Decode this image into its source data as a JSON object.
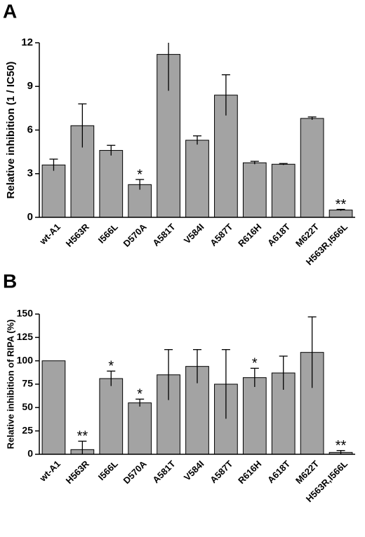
{
  "chart_data": [
    {
      "type": "bar",
      "panel": "A",
      "ylabel": "Relative inhibition (1 / IC50)",
      "categories": [
        "wt-A1",
        "H563R",
        "I566L",
        "D570A",
        "A581T",
        "V584I",
        "A587T",
        "R616H",
        "A618T",
        "M622T",
        "H563R,I566L"
      ],
      "values": [
        3.6,
        6.3,
        4.6,
        2.25,
        11.2,
        5.3,
        8.4,
        3.75,
        3.65,
        6.8,
        0.5
      ],
      "errors": [
        0.4,
        1.5,
        0.35,
        0.35,
        2.5,
        0.3,
        1.4,
        0.1,
        0.05,
        0.1,
        0.05
      ],
      "bar_labels": [
        null,
        null,
        null,
        "*",
        null,
        null,
        null,
        null,
        null,
        null,
        "**"
      ],
      "color": "#a3a3a3",
      "ylim": [
        0,
        12
      ],
      "yticks": [
        0,
        3,
        6,
        9,
        12
      ]
    },
    {
      "type": "bar",
      "panel": "B",
      "ylabel": "Relative inhibition of RIPA (%)",
      "categories": [
        "wt-A1",
        "H563R",
        "I566L",
        "D570A",
        "A581T",
        "V584I",
        "A587T",
        "R616H",
        "A618T",
        "M622T",
        "H563R,I566L"
      ],
      "values": [
        100,
        5,
        81,
        55,
        85,
        94,
        75,
        82,
        87,
        109,
        2
      ],
      "errors": [
        0,
        9,
        8,
        4,
        27,
        18,
        37,
        10,
        18,
        38,
        2
      ],
      "bar_labels": [
        null,
        "**",
        "*",
        "*",
        null,
        null,
        null,
        "*",
        null,
        null,
        "**"
      ],
      "color": "#a3a3a3",
      "ylim": [
        0,
        150
      ],
      "yticks": [
        0,
        25,
        50,
        75,
        100,
        125,
        150
      ]
    }
  ]
}
